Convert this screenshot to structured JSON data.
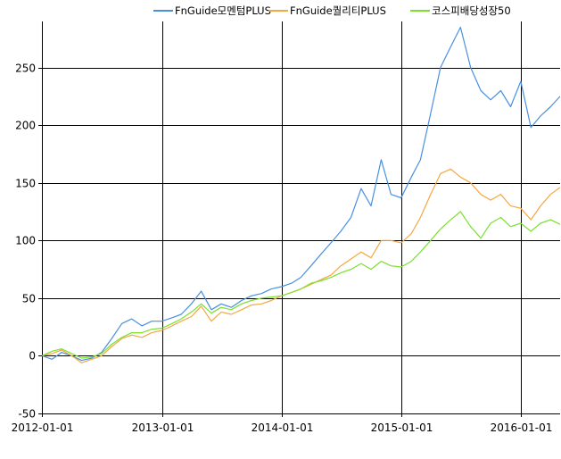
{
  "chart_data": {
    "type": "line",
    "title": "",
    "xlabel": "",
    "ylabel": "",
    "ylim": [
      -50,
      290
    ],
    "y_ticks": [
      -50,
      0,
      50,
      100,
      150,
      200,
      250
    ],
    "x_range": [
      "2012-01-01",
      "2016-04-30"
    ],
    "x_ticks": [
      "2012-01-01",
      "2013-01-01",
      "2014-01-01",
      "2015-01-01",
      "2016-01-01"
    ],
    "grid": true,
    "legend_position": "top",
    "series": [
      {
        "name": "FnGuide모멘텀PLUS",
        "color": "#4a90e2",
        "points": [
          [
            "2012-01-01",
            0
          ],
          [
            "2012-02-01",
            -3
          ],
          [
            "2012-03-01",
            3
          ],
          [
            "2012-04-01",
            0
          ],
          [
            "2012-05-01",
            -4
          ],
          [
            "2012-06-01",
            -2
          ],
          [
            "2012-07-01",
            3
          ],
          [
            "2012-08-01",
            15
          ],
          [
            "2012-09-01",
            28
          ],
          [
            "2012-10-01",
            32
          ],
          [
            "2012-11-01",
            26
          ],
          [
            "2012-12-01",
            30
          ],
          [
            "2013-01-01",
            30
          ],
          [
            "2013-02-01",
            33
          ],
          [
            "2013-03-01",
            36
          ],
          [
            "2013-04-01",
            45
          ],
          [
            "2013-05-01",
            56
          ],
          [
            "2013-06-01",
            40
          ],
          [
            "2013-07-01",
            45
          ],
          [
            "2013-08-01",
            42
          ],
          [
            "2013-09-01",
            48
          ],
          [
            "2013-10-01",
            52
          ],
          [
            "2013-11-01",
            54
          ],
          [
            "2013-12-01",
            58
          ],
          [
            "2014-01-01",
            60
          ],
          [
            "2014-02-01",
            63
          ],
          [
            "2014-03-01",
            68
          ],
          [
            "2014-04-01",
            78
          ],
          [
            "2014-05-01",
            88
          ],
          [
            "2014-06-01",
            98
          ],
          [
            "2014-07-01",
            108
          ],
          [
            "2014-08-01",
            120
          ],
          [
            "2014-09-01",
            145
          ],
          [
            "2014-10-01",
            130
          ],
          [
            "2014-11-01",
            170
          ],
          [
            "2014-12-01",
            140
          ],
          [
            "2015-01-01",
            137
          ],
          [
            "2015-02-01",
            155
          ],
          [
            "2015-03-01",
            170
          ],
          [
            "2015-04-01",
            210
          ],
          [
            "2015-05-01",
            250
          ],
          [
            "2015-06-01",
            268
          ],
          [
            "2015-07-01",
            285
          ],
          [
            "2015-08-01",
            250
          ],
          [
            "2015-09-01",
            230
          ],
          [
            "2015-10-01",
            222
          ],
          [
            "2015-11-01",
            230
          ],
          [
            "2015-12-01",
            216
          ],
          [
            "2016-01-01",
            238
          ],
          [
            "2016-02-01",
            198
          ],
          [
            "2016-03-01",
            208
          ],
          [
            "2016-04-01",
            216
          ],
          [
            "2016-04-30",
            225
          ]
        ]
      },
      {
        "name": "FnGuide퀄리티PLUS",
        "color": "#f5a742",
        "points": [
          [
            "2012-01-01",
            0
          ],
          [
            "2012-02-01",
            2
          ],
          [
            "2012-03-01",
            5
          ],
          [
            "2012-04-01",
            0
          ],
          [
            "2012-05-01",
            -6
          ],
          [
            "2012-06-01",
            -3
          ],
          [
            "2012-07-01",
            0
          ],
          [
            "2012-08-01",
            8
          ],
          [
            "2012-09-01",
            15
          ],
          [
            "2012-10-01",
            18
          ],
          [
            "2012-11-01",
            16
          ],
          [
            "2012-12-01",
            20
          ],
          [
            "2013-01-01",
            22
          ],
          [
            "2013-02-01",
            26
          ],
          [
            "2013-03-01",
            30
          ],
          [
            "2013-04-01",
            34
          ],
          [
            "2013-05-01",
            43
          ],
          [
            "2013-06-01",
            30
          ],
          [
            "2013-07-01",
            38
          ],
          [
            "2013-08-01",
            36
          ],
          [
            "2013-09-01",
            40
          ],
          [
            "2013-10-01",
            44
          ],
          [
            "2013-11-01",
            45
          ],
          [
            "2013-12-01",
            48
          ],
          [
            "2014-01-01",
            52
          ],
          [
            "2014-02-01",
            55
          ],
          [
            "2014-03-01",
            58
          ],
          [
            "2014-04-01",
            62
          ],
          [
            "2014-05-01",
            66
          ],
          [
            "2014-06-01",
            70
          ],
          [
            "2014-07-01",
            78
          ],
          [
            "2014-08-01",
            84
          ],
          [
            "2014-09-01",
            90
          ],
          [
            "2014-10-01",
            85
          ],
          [
            "2014-11-01",
            100
          ],
          [
            "2014-12-01",
            100
          ],
          [
            "2015-01-01",
            98
          ],
          [
            "2015-02-01",
            106
          ],
          [
            "2015-03-01",
            120
          ],
          [
            "2015-04-01",
            140
          ],
          [
            "2015-05-01",
            158
          ],
          [
            "2015-06-01",
            162
          ],
          [
            "2015-07-01",
            155
          ],
          [
            "2015-08-01",
            150
          ],
          [
            "2015-09-01",
            140
          ],
          [
            "2015-10-01",
            135
          ],
          [
            "2015-11-01",
            140
          ],
          [
            "2015-12-01",
            130
          ],
          [
            "2016-01-01",
            128
          ],
          [
            "2016-02-01",
            118
          ],
          [
            "2016-03-01",
            130
          ],
          [
            "2016-04-01",
            140
          ],
          [
            "2016-04-30",
            146
          ]
        ]
      },
      {
        "name": "코스피배당성장50",
        "color": "#7be02f",
        "points": [
          [
            "2012-01-01",
            0
          ],
          [
            "2012-02-01",
            4
          ],
          [
            "2012-03-01",
            6
          ],
          [
            "2012-04-01",
            2
          ],
          [
            "2012-05-01",
            -2
          ],
          [
            "2012-06-01",
            -1
          ],
          [
            "2012-07-01",
            2
          ],
          [
            "2012-08-01",
            10
          ],
          [
            "2012-09-01",
            16
          ],
          [
            "2012-10-01",
            20
          ],
          [
            "2012-11-01",
            20
          ],
          [
            "2012-12-01",
            23
          ],
          [
            "2013-01-01",
            24
          ],
          [
            "2013-02-01",
            28
          ],
          [
            "2013-03-01",
            32
          ],
          [
            "2013-04-01",
            38
          ],
          [
            "2013-05-01",
            45
          ],
          [
            "2013-06-01",
            37
          ],
          [
            "2013-07-01",
            42
          ],
          [
            "2013-08-01",
            40
          ],
          [
            "2013-09-01",
            45
          ],
          [
            "2013-10-01",
            48
          ],
          [
            "2013-11-01",
            50
          ],
          [
            "2013-12-01",
            51
          ],
          [
            "2014-01-01",
            52
          ],
          [
            "2014-02-01",
            55
          ],
          [
            "2014-03-01",
            58
          ],
          [
            "2014-04-01",
            63
          ],
          [
            "2014-05-01",
            65
          ],
          [
            "2014-06-01",
            68
          ],
          [
            "2014-07-01",
            72
          ],
          [
            "2014-08-01",
            75
          ],
          [
            "2014-09-01",
            80
          ],
          [
            "2014-10-01",
            75
          ],
          [
            "2014-11-01",
            82
          ],
          [
            "2014-12-01",
            78
          ],
          [
            "2015-01-01",
            77
          ],
          [
            "2015-02-01",
            82
          ],
          [
            "2015-03-01",
            90
          ],
          [
            "2015-04-01",
            100
          ],
          [
            "2015-05-01",
            110
          ],
          [
            "2015-06-01",
            118
          ],
          [
            "2015-07-01",
            125
          ],
          [
            "2015-08-01",
            112
          ],
          [
            "2015-09-01",
            102
          ],
          [
            "2015-10-01",
            115
          ],
          [
            "2015-11-01",
            120
          ],
          [
            "2015-12-01",
            112
          ],
          [
            "2016-01-01",
            115
          ],
          [
            "2016-02-01",
            108
          ],
          [
            "2016-03-01",
            115
          ],
          [
            "2016-04-01",
            118
          ],
          [
            "2016-04-30",
            114
          ]
        ]
      }
    ]
  },
  "colors": {
    "grid": "#000000",
    "axis": "#000000",
    "background": "#ffffff"
  }
}
